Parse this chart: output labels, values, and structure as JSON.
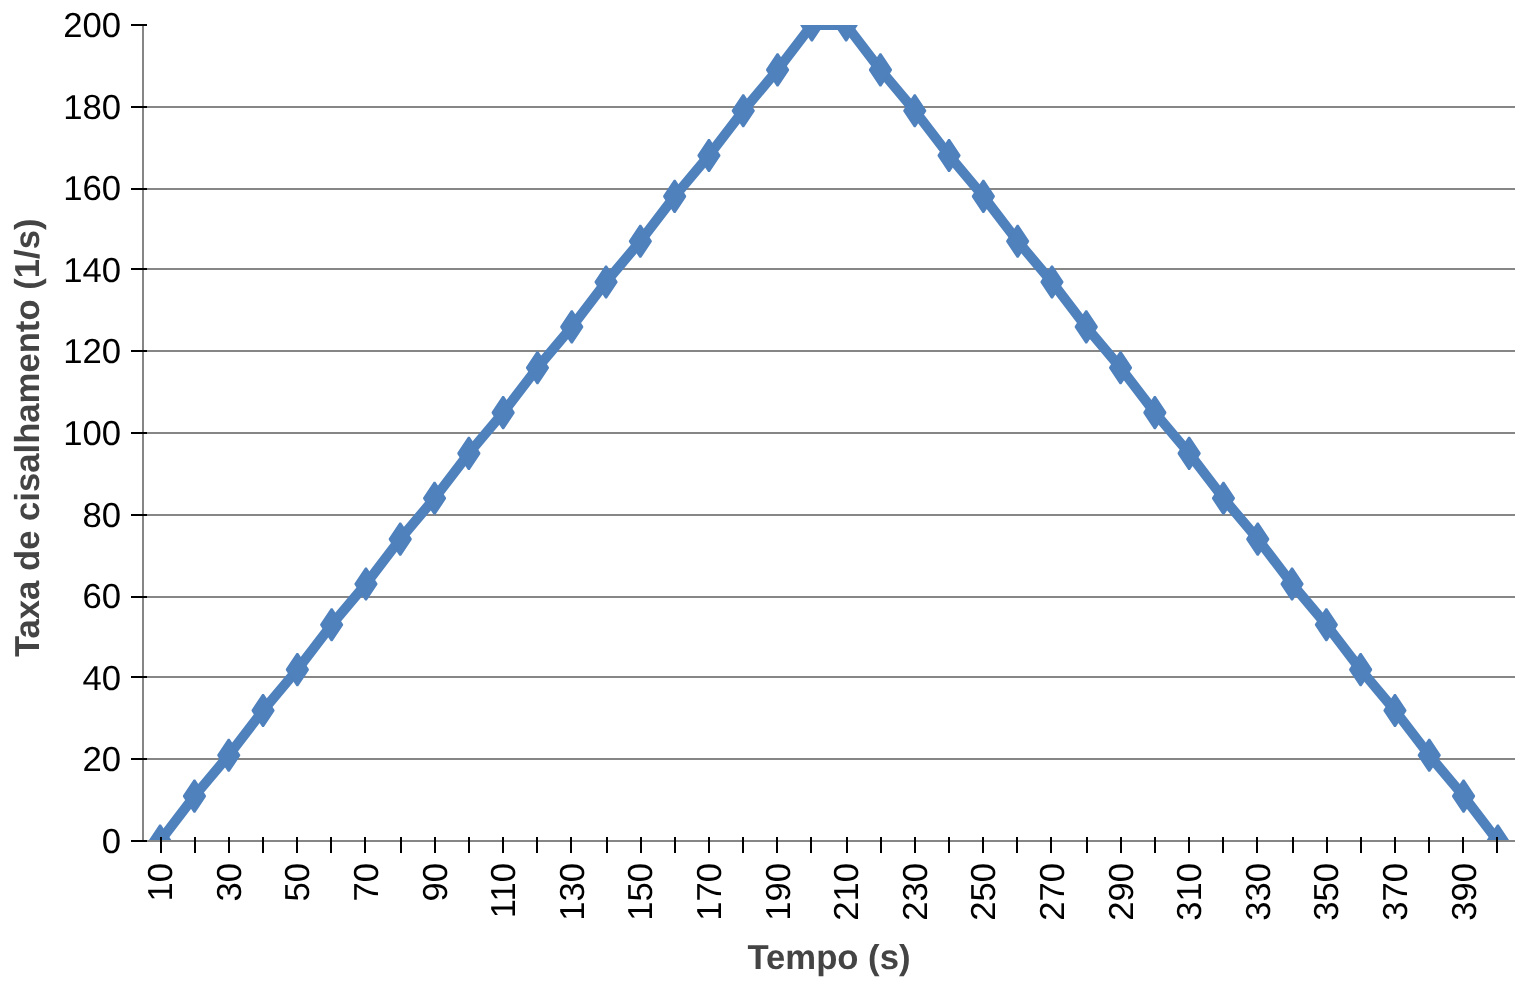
{
  "chart_data": {
    "type": "line",
    "xlabel": "Tempo (s)",
    "ylabel": "Taxa de cisalhamento  (1/s)",
    "categories": [
      "10",
      null,
      "30",
      null,
      "50",
      null,
      "70",
      null,
      "90",
      null,
      "110",
      null,
      "130",
      null,
      "150",
      null,
      "170",
      null,
      "190",
      null,
      "210",
      null,
      "230",
      null,
      "250",
      null,
      "270",
      null,
      "290",
      null,
      "310",
      null,
      "330",
      null,
      "350",
      null,
      "370",
      null,
      "390",
      null
    ],
    "series": [
      {
        "color": "#4f81bd",
        "values": [
          0,
          11,
          21,
          32,
          42,
          53,
          63,
          74,
          84,
          95,
          105,
          116,
          126,
          137,
          147,
          158,
          168,
          179,
          189,
          200,
          200,
          189,
          179,
          168,
          158,
          147,
          137,
          126,
          116,
          105,
          95,
          84,
          74,
          63,
          53,
          42,
          32,
          21,
          11,
          0
        ]
      }
    ],
    "ylim": [
      0,
      200
    ],
    "yticks": [
      0,
      20,
      40,
      60,
      80,
      100,
      120,
      140,
      160,
      180,
      200
    ],
    "grid": "y",
    "marker": "diamond",
    "line_style": "solid"
  }
}
